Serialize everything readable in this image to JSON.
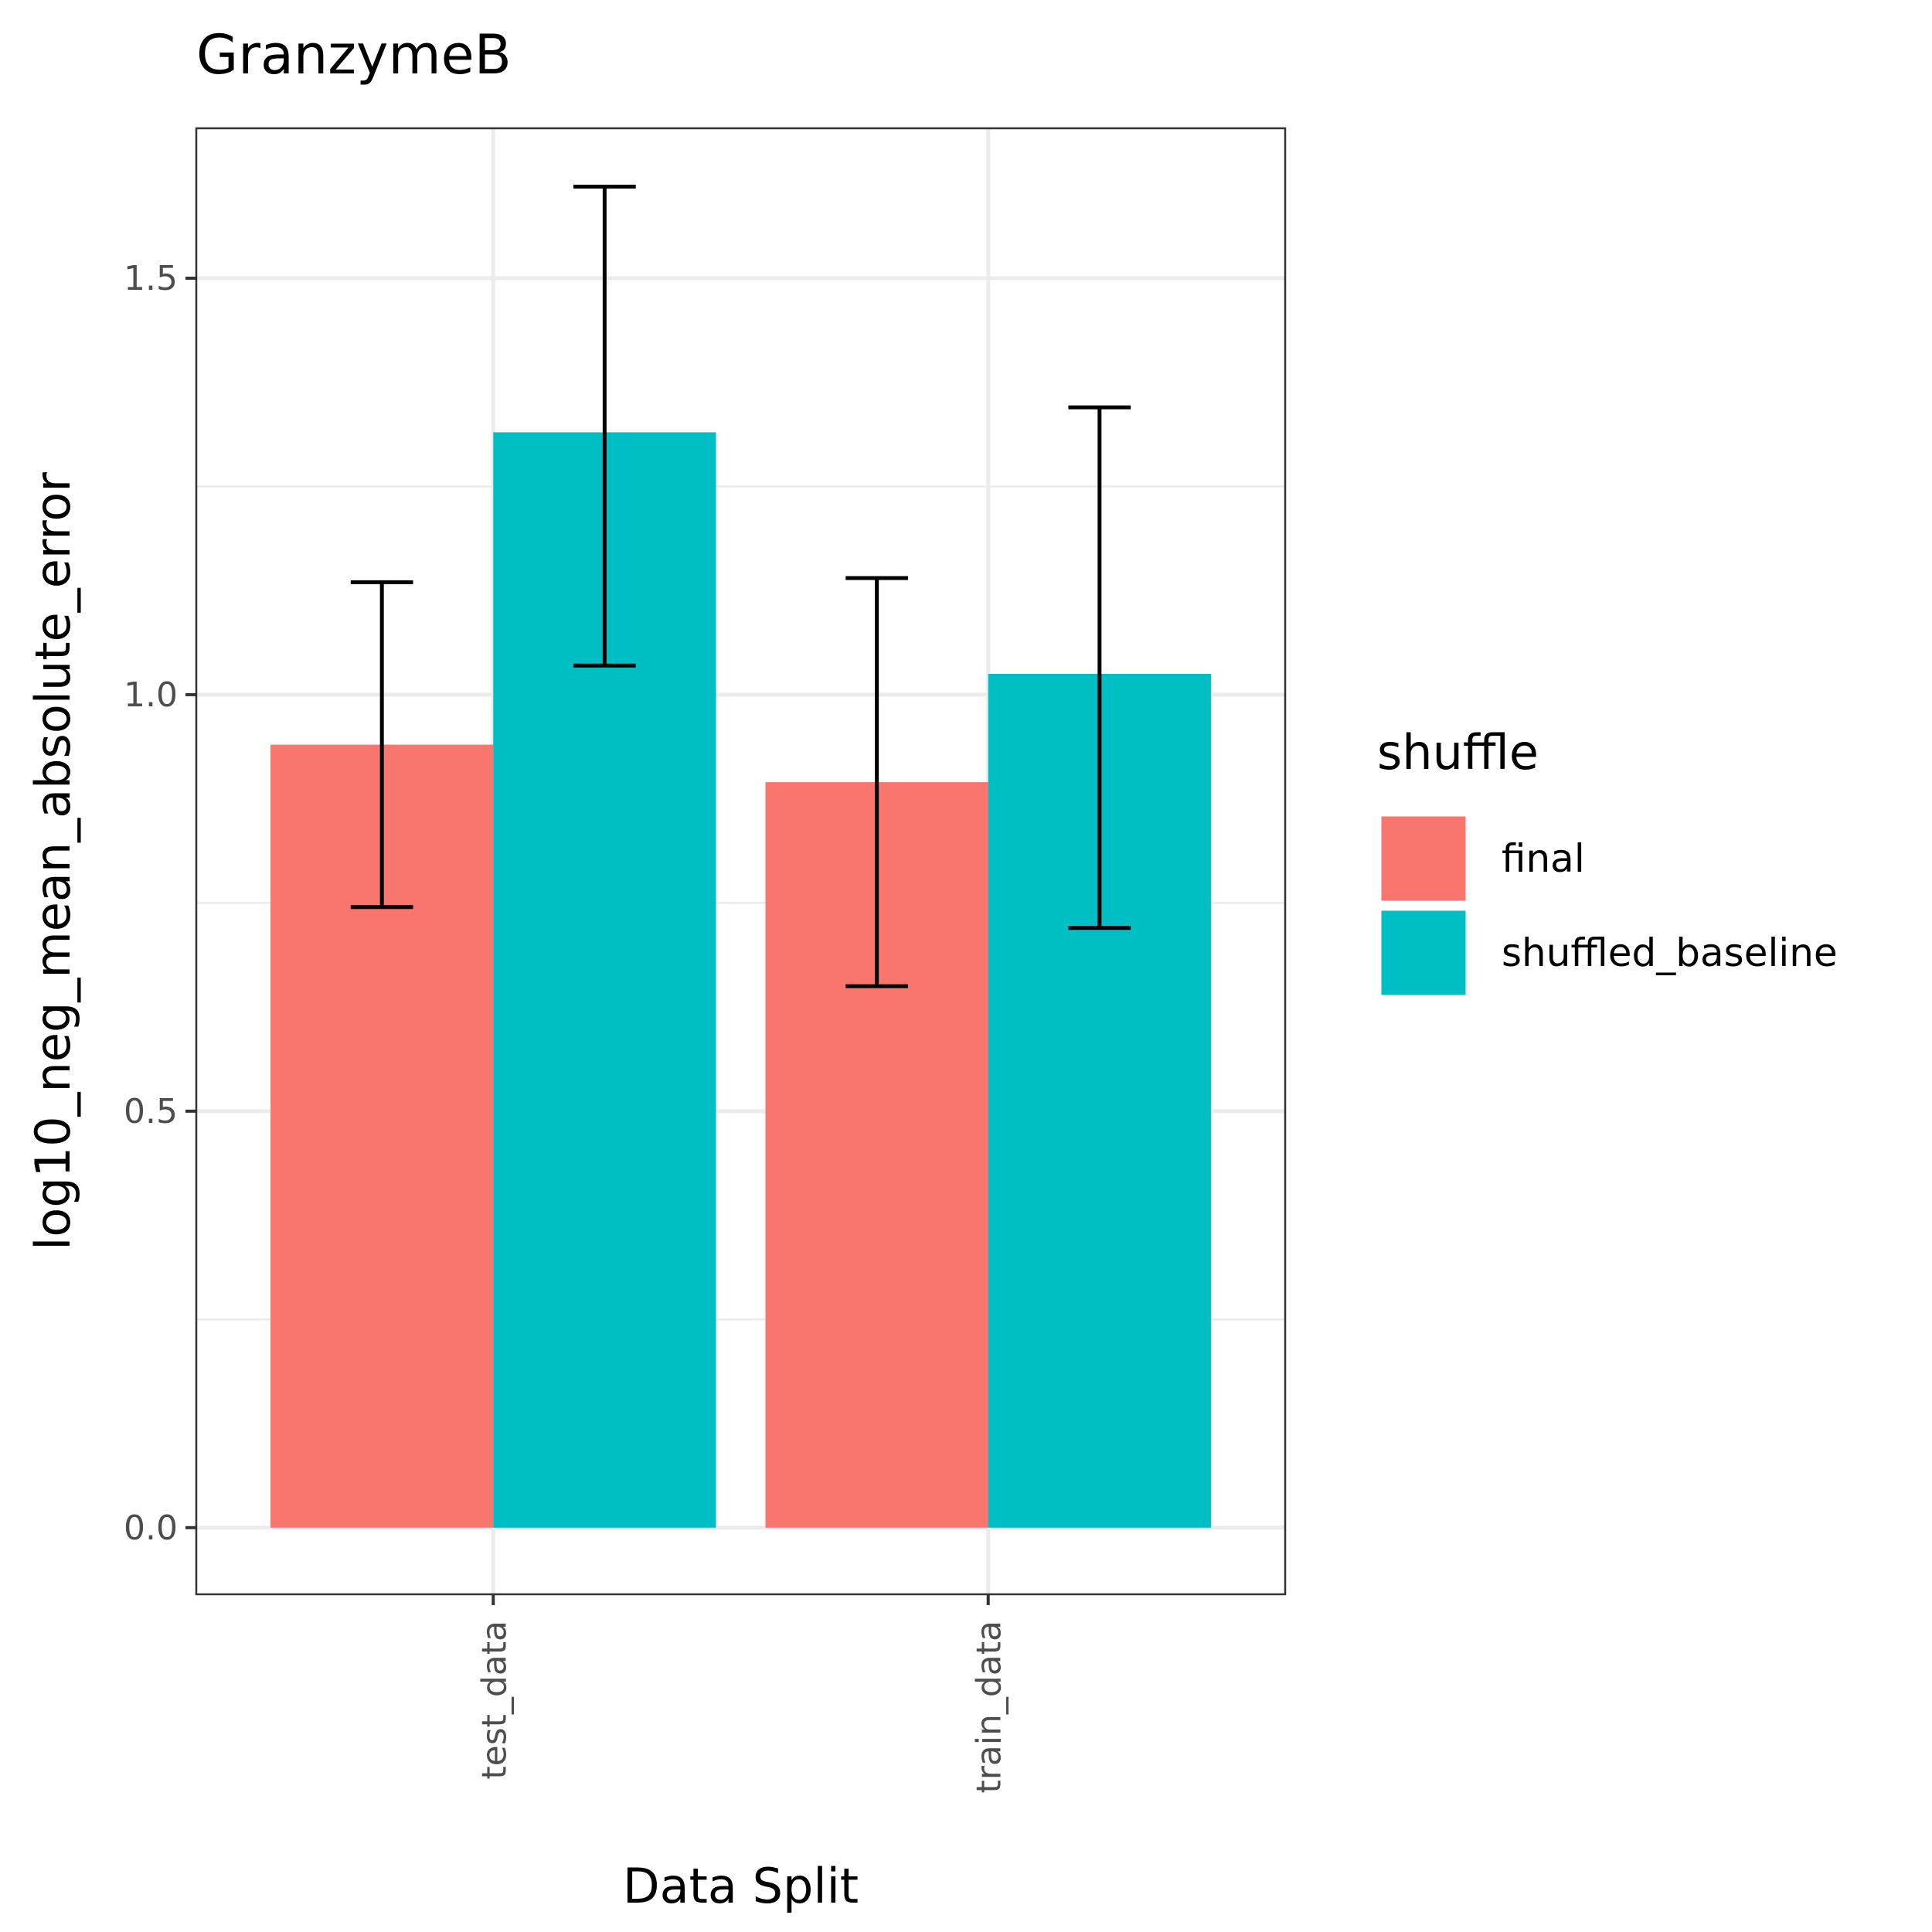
{
  "chart_data": {
    "type": "bar",
    "title": "GranzymeB",
    "xlabel": "Data Split",
    "ylabel": "log10_neg_mean_absolute_error",
    "categories": [
      "test_data",
      "train_data"
    ],
    "ylim": [
      -0.08,
      1.68
    ],
    "yticks": [
      0.0,
      0.5,
      1.0,
      1.5
    ],
    "ytick_labels": [
      "0.0",
      "0.5",
      "1.0",
      "1.5"
    ],
    "grid": true,
    "legend_title": "shuffle",
    "legend_position": "right",
    "series": [
      {
        "name": "final",
        "color": "#F8766D",
        "values": [
          0.94,
          0.895
        ],
        "error_low": [
          0.745,
          0.65
        ],
        "error_high": [
          1.135,
          1.14
        ]
      },
      {
        "name": "shuffled_baseline",
        "color": "#00BFC4",
        "values": [
          1.315,
          1.025
        ],
        "error_low": [
          1.035,
          0.72
        ],
        "error_high": [
          1.61,
          1.345
        ]
      }
    ]
  }
}
